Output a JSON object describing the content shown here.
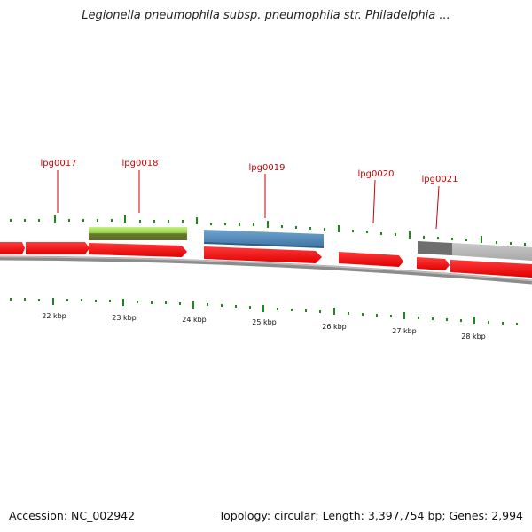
{
  "title": "Legionella pneumophila subsp. pneumophila str. Philadelphia ...",
  "footer": {
    "accession": "Accession: NC_002942",
    "summary": "Topology: circular; Length: 3,397,754 bp; Genes: 2,994"
  },
  "colors": {
    "gene": "#ff1a1a",
    "backbone": "#7a7a7a",
    "tick": "#1a8a1a",
    "label": "#cc0000",
    "highlight_green": "#8fd24a",
    "highlight_blue": "#4e86b6",
    "highlight_gray": "#9a9a9a"
  },
  "scale": {
    "tick_labels": [
      "22 kbp",
      "23 kbp",
      "24 kbp",
      "25 kbp",
      "26 kbp",
      "27 kbp",
      "28 kbp"
    ]
  },
  "gene_labels": [
    "lpg0017",
    "lpg0018",
    "lpg0019",
    "lpg0020",
    "lpg0021"
  ]
}
